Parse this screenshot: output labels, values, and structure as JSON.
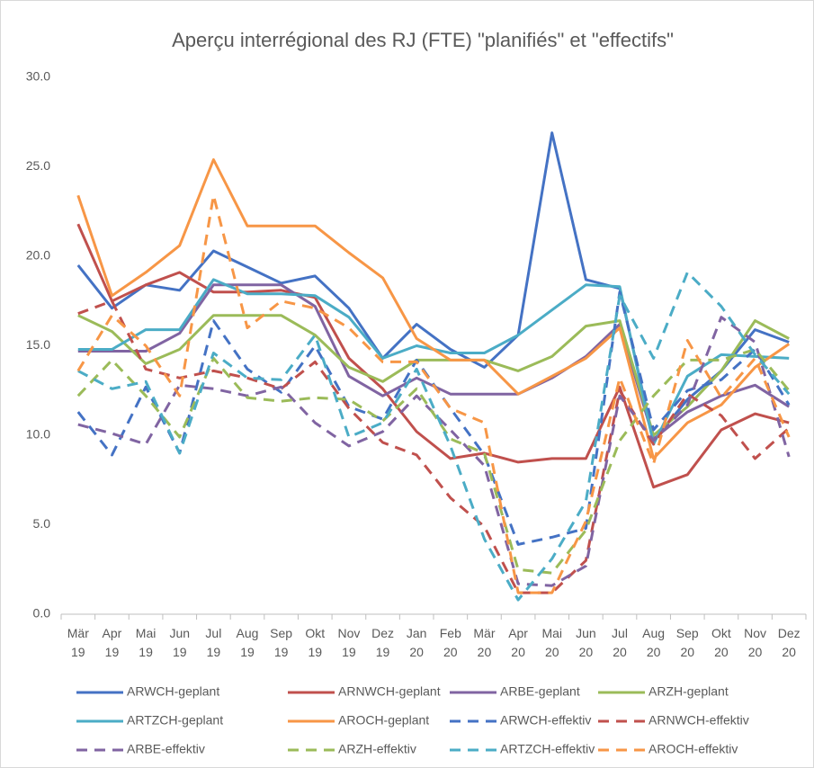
{
  "chart_data": {
    "type": "line",
    "title": "Aperçu interrégional des RJ (FTE) \"planifiés\" et \"effectifs\"",
    "categories": [
      "Mär 19",
      "Apr 19",
      "Mai 19",
      "Jun 19",
      "Jul 19",
      "Aug 19",
      "Sep 19",
      "Okt 19",
      "Nov 19",
      "Dez 19",
      "Jan 20",
      "Feb 20",
      "Mär 20",
      "Apr 20",
      "Mai 20",
      "Jun 20",
      "Jul 20",
      "Aug 20",
      "Sep 20",
      "Okt 20",
      "Nov 20",
      "Dez 20"
    ],
    "ylim": [
      0,
      30
    ],
    "yticks": [
      {
        "value": 0,
        "label": "0.0"
      },
      {
        "value": 5,
        "label": "5.0"
      },
      {
        "value": 10,
        "label": "10.0"
      },
      {
        "value": 15,
        "label": "15.0"
      },
      {
        "value": 20,
        "label": "20.0"
      },
      {
        "value": 25,
        "label": "25.0"
      },
      {
        "value": 30,
        "label": "30.0"
      }
    ],
    "grid": false,
    "legend": "bottom",
    "series": [
      {
        "name": "ARWCH-geplant",
        "color": "#4472c4",
        "line_style": "solid",
        "values": [
          19.5,
          17.1,
          18.4,
          18.1,
          20.3,
          19.4,
          18.5,
          18.9,
          17.1,
          14.3,
          16.2,
          14.8,
          13.8,
          15.6,
          26.9,
          18.7,
          18.2,
          9.7,
          12.0,
          13.6,
          15.9,
          15.2
        ]
      },
      {
        "name": "ARNWCH-geplant",
        "color": "#c0504d",
        "line_style": "solid",
        "values": [
          21.8,
          17.5,
          18.4,
          19.1,
          18.0,
          18.0,
          18.1,
          17.7,
          14.3,
          12.6,
          10.2,
          8.7,
          9.0,
          8.5,
          8.7,
          8.7,
          12.7,
          7.1,
          7.8,
          10.3,
          11.2,
          10.7
        ]
      },
      {
        "name": "ARBE-geplant",
        "color": "#8064a2",
        "line_style": "solid",
        "values": [
          14.7,
          14.7,
          14.7,
          15.7,
          18.4,
          18.4,
          18.4,
          17.2,
          13.3,
          12.2,
          13.2,
          12.3,
          12.3,
          12.3,
          13.2,
          14.4,
          16.2,
          9.8,
          11.3,
          12.2,
          12.8,
          11.6
        ]
      },
      {
        "name": "ARZH-geplant",
        "color": "#9bbb59",
        "line_style": "solid",
        "values": [
          16.7,
          15.8,
          14.0,
          14.8,
          16.7,
          16.7,
          16.7,
          15.6,
          13.8,
          13.0,
          14.2,
          14.2,
          14.2,
          13.6,
          14.4,
          16.1,
          16.4,
          10.0,
          11.6,
          13.6,
          16.4,
          15.4
        ]
      },
      {
        "name": "ARTZCH-geplant",
        "color": "#4bacc6",
        "line_style": "solid",
        "values": [
          14.8,
          14.8,
          15.9,
          15.9,
          18.7,
          17.9,
          17.9,
          17.8,
          16.6,
          14.3,
          15.0,
          14.6,
          14.6,
          15.6,
          17.0,
          18.4,
          18.3,
          9.5,
          13.3,
          14.5,
          14.4,
          14.3
        ]
      },
      {
        "name": "AROCH-geplant",
        "color": "#f79646",
        "line_style": "solid",
        "values": [
          23.4,
          17.8,
          19.1,
          20.6,
          25.4,
          21.7,
          21.7,
          21.7,
          20.2,
          18.8,
          15.4,
          14.2,
          14.2,
          12.3,
          13.3,
          14.3,
          16.0,
          8.7,
          10.7,
          11.7,
          13.8,
          15.1
        ]
      },
      {
        "name": "ARWCH-effektiv",
        "color": "#4472c4",
        "line_style": "dashed",
        "values": [
          11.3,
          8.9,
          12.7,
          9.0,
          16.4,
          13.7,
          12.4,
          15.0,
          11.6,
          10.9,
          14.2,
          11.5,
          8.9,
          3.9,
          4.3,
          4.8,
          18.0,
          10.3,
          12.5,
          13.1,
          14.8,
          11.7
        ]
      },
      {
        "name": "ARNWCH-effektiv",
        "color": "#c0504d",
        "line_style": "dashed",
        "values": [
          16.8,
          17.5,
          13.7,
          13.2,
          13.6,
          13.2,
          12.6,
          14.1,
          11.5,
          9.6,
          8.9,
          6.5,
          4.9,
          1.2,
          1.2,
          3.0,
          12.5,
          9.5,
          12.3,
          11.1,
          8.7,
          10.4
        ]
      },
      {
        "name": "ARBE-effektiv",
        "color": "#8064a2",
        "line_style": "dashed",
        "values": [
          10.6,
          10.1,
          9.5,
          12.8,
          12.6,
          12.2,
          12.7,
          10.7,
          9.4,
          10.2,
          12.2,
          10.3,
          8.3,
          1.7,
          1.6,
          2.7,
          12.2,
          9.7,
          11.7,
          16.6,
          15.2,
          8.8
        ]
      },
      {
        "name": "ARZH-effektiv",
        "color": "#9bbb59",
        "line_style": "dashed",
        "values": [
          12.2,
          14.2,
          12.2,
          9.9,
          14.3,
          12.1,
          11.9,
          12.1,
          12.0,
          10.8,
          12.6,
          9.8,
          9.0,
          2.5,
          2.3,
          4.7,
          9.7,
          12.2,
          14.2,
          14.2,
          14.8,
          12.5
        ]
      },
      {
        "name": "ARTZCH-effektiv",
        "color": "#4bacc6",
        "line_style": "dashed",
        "values": [
          13.6,
          12.6,
          13.0,
          9.0,
          14.6,
          13.2,
          13.1,
          15.6,
          9.9,
          10.7,
          13.7,
          9.4,
          4.2,
          0.8,
          3.1,
          6.3,
          17.8,
          14.3,
          19.1,
          17.2,
          14.5,
          12.3
        ]
      },
      {
        "name": "AROCH-effektiv",
        "color": "#f79646",
        "line_style": "dashed",
        "values": [
          13.6,
          16.7,
          15.0,
          12.2,
          23.4,
          16.0,
          17.5,
          17.1,
          16.0,
          14.1,
          14.1,
          11.5,
          10.7,
          1.2,
          1.2,
          5.2,
          13.2,
          8.4,
          15.3,
          12.1,
          14.3,
          9.9
        ]
      }
    ]
  }
}
